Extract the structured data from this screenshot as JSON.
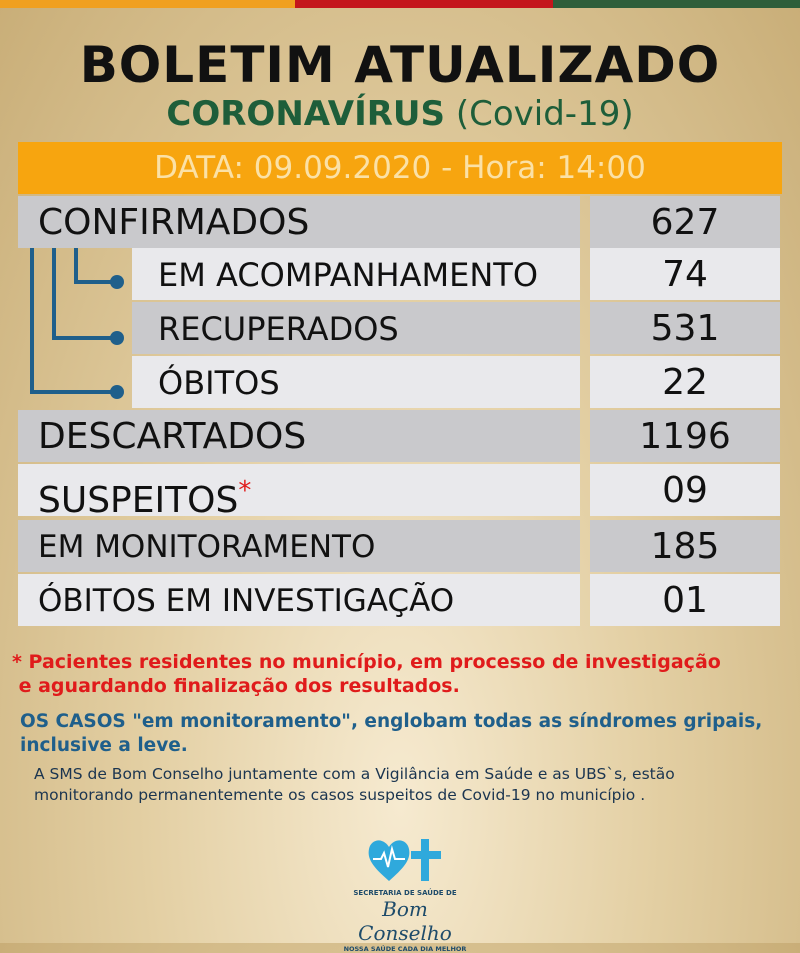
{
  "colors": {
    "orange": "#f7a50f",
    "red": "#c4161c",
    "green": "#2e5e3a",
    "blue": "#1f5f8b"
  },
  "header": {
    "title": "BOLETIM ATUALIZADO",
    "subtitle_bold": "CORONAVÍRUS",
    "subtitle_rest": "(Covid-19)",
    "date": "DATA: 09.09.2020 - Hora: 14:00"
  },
  "rows": [
    {
      "label": "CONFIRMADOS",
      "value": "627"
    },
    {
      "label": "EM ACOMPANHAMENTO",
      "value": "74"
    },
    {
      "label": "RECUPERADOS",
      "value": "531"
    },
    {
      "label": "ÓBITOS",
      "value": "22"
    },
    {
      "label": "DESCARTADOS",
      "value": "1196"
    },
    {
      "label": "SUSPEITOS",
      "marker": "*",
      "value": "09"
    },
    {
      "label": "EM MONITORAMENTO",
      "value": "185"
    },
    {
      "label": "ÓBITOS EM INVESTIGAÇÃO",
      "value": "01"
    }
  ],
  "notes": {
    "asterisk": "* Pacientes residentes no município, em processo de investigação\n e aguardando finalização dos resultados.",
    "monitoring": "OS CASOS \"em monitoramento\", englobam todas as síndromes gripais,\ninclusive a leve.",
    "sms": "A SMS de Bom Conselho juntamente com a Vigilância em Saúde e as UBS`s, estão\nmonitorando permanentemente os casos suspeitos de Covid-19 no município ."
  },
  "logo": {
    "line1": "SECRETARIA DE SAÚDE DE",
    "line2": "Bom Conselho",
    "line3": "NOSSA SAÚDE CADA DIA MELHOR"
  }
}
